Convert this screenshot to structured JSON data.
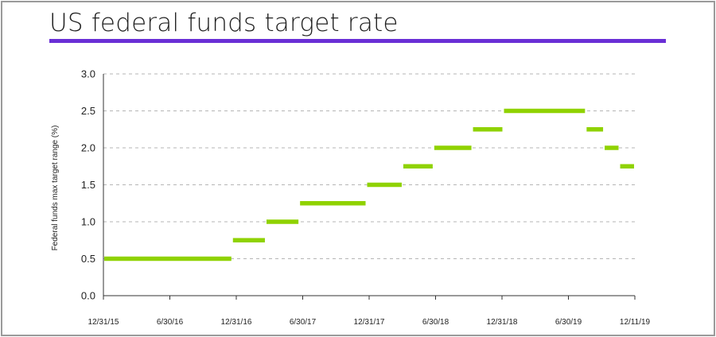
{
  "title": "US federal funds target rate",
  "chart_data": {
    "type": "line",
    "title": "US federal funds target rate",
    "ylabel": "Federal funds max target range (%)",
    "xlabel": "",
    "ylim": [
      0,
      3.0
    ],
    "y_ticks": [
      "0.0",
      "0.5",
      "1.0",
      "1.5",
      "2.0",
      "2.5",
      "3.0"
    ],
    "x_tick_labels": [
      "12/31/15",
      "6/30/16",
      "12/31/16",
      "6/30/17",
      "12/31/17",
      "6/30/18",
      "12/31/18",
      "6/30/19",
      "12/11/19"
    ],
    "x_range": [
      "2015-12-31",
      "2019-12-11"
    ],
    "grid": "horizontal dashed",
    "legend": "none",
    "color": "#8fd200",
    "series": [
      {
        "segments": [
          {
            "start": "2015-12-31",
            "end": "2016-12-14",
            "value": 0.5
          },
          {
            "start": "2016-12-14",
            "end": "2017-03-15",
            "value": 0.75
          },
          {
            "start": "2017-03-15",
            "end": "2017-06-14",
            "value": 1.0
          },
          {
            "start": "2017-06-14",
            "end": "2017-12-13",
            "value": 1.25
          },
          {
            "start": "2017-12-13",
            "end": "2018-03-21",
            "value": 1.5
          },
          {
            "start": "2018-03-21",
            "end": "2018-06-13",
            "value": 1.75
          },
          {
            "start": "2018-06-13",
            "end": "2018-09-26",
            "value": 2.0
          },
          {
            "start": "2018-09-26",
            "end": "2018-12-19",
            "value": 2.25
          },
          {
            "start": "2018-12-19",
            "end": "2019-07-31",
            "value": 2.5
          },
          {
            "start": "2019-07-31",
            "end": "2019-09-18",
            "value": 2.25
          },
          {
            "start": "2019-09-18",
            "end": "2019-10-30",
            "value": 2.0
          },
          {
            "start": "2019-10-30",
            "end": "2019-12-11",
            "value": 1.75
          }
        ]
      }
    ]
  }
}
